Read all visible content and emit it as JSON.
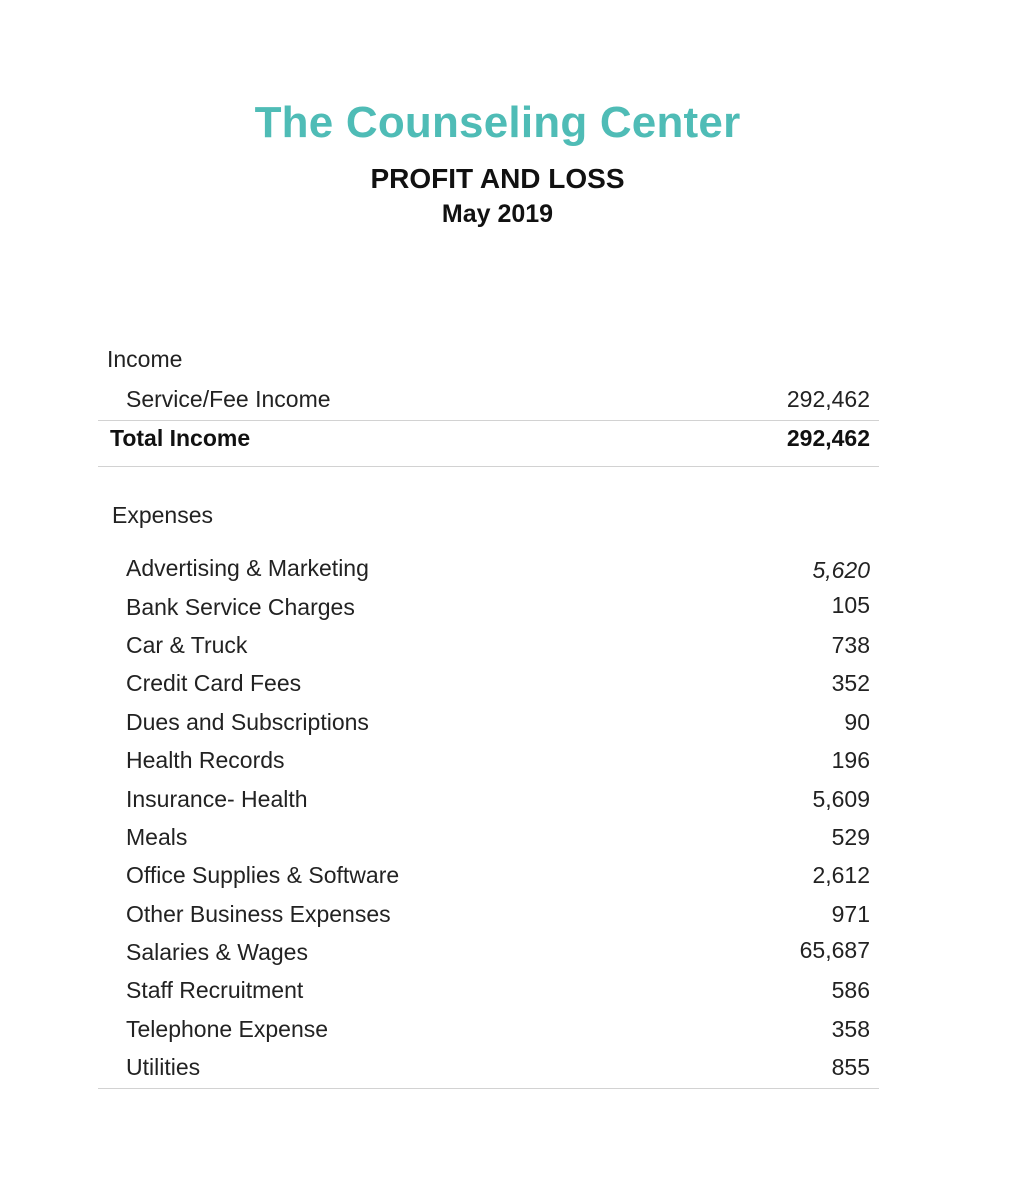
{
  "header": {
    "company": "The Counseling Center",
    "report_title": "PROFIT AND LOSS",
    "period": "May 2019"
  },
  "income": {
    "section_label": "Income",
    "items": [
      {
        "label": "Service/Fee Income",
        "value": "292,462"
      }
    ],
    "total_label": "Total Income",
    "total_value": "292,462"
  },
  "expenses": {
    "section_label": "Expenses",
    "items": [
      {
        "label": "Advertising & Marketing",
        "value": "5,620"
      },
      {
        "label": "Bank Service Charges",
        "value": "105"
      },
      {
        "label": "Car & Truck",
        "value": "738"
      },
      {
        "label": "Credit Card Fees",
        "value": "352"
      },
      {
        "label": "Dues and Subscriptions",
        "value": "90"
      },
      {
        "label": "Health Records",
        "value": "196"
      },
      {
        "label": "Insurance- Health",
        "value": "5,609"
      },
      {
        "label": "Meals",
        "value": "529"
      },
      {
        "label": "Office Supplies & Software",
        "value": "2,612"
      },
      {
        "label": "Other Business Expenses",
        "value": "971"
      },
      {
        "label": "Salaries & Wages",
        "value": "65,687"
      },
      {
        "label": "Staff Recruitment",
        "value": "586"
      },
      {
        "label": "Telephone Expense",
        "value": "358"
      },
      {
        "label": "Utilities",
        "value": "855"
      }
    ]
  }
}
